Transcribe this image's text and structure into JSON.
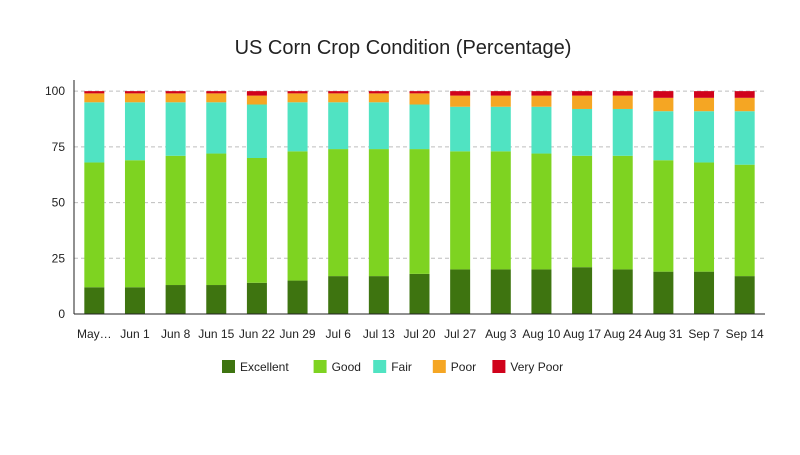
{
  "chart_data": {
    "type": "bar",
    "stacked": true,
    "title": "US Corn Crop Condition (Percentage)",
    "xlabel": "",
    "ylabel": "",
    "ylim": [
      0,
      100
    ],
    "yticks": [
      0,
      25,
      50,
      75,
      100
    ],
    "grid": {
      "horizontal": true,
      "style": "dashed"
    },
    "legend_position": "bottom",
    "categories": [
      "May…",
      "Jun 1",
      "Jun 8",
      "Jun 15",
      "Jun 22",
      "Jun 29",
      "Jul 6",
      "Jul 13",
      "Jul 20",
      "Jul 27",
      "Aug 3",
      "Aug 10",
      "Aug 17",
      "Aug 24",
      "Aug 31",
      "Sep 7",
      "Sep 14"
    ],
    "series": [
      {
        "name": "Excellent",
        "color": "#3e7410",
        "values": [
          12,
          12,
          13,
          13,
          14,
          15,
          17,
          17,
          18,
          20,
          20,
          20,
          21,
          20,
          19,
          19,
          17
        ]
      },
      {
        "name": "Good",
        "color": "#7ed321",
        "values": [
          56,
          57,
          58,
          59,
          56,
          58,
          57,
          57,
          56,
          53,
          53,
          52,
          50,
          51,
          50,
          49,
          50
        ]
      },
      {
        "name": "Fair",
        "color": "#50e3c2",
        "values": [
          27,
          26,
          24,
          23,
          24,
          22,
          21,
          21,
          20,
          20,
          20,
          21,
          21,
          21,
          22,
          23,
          24
        ]
      },
      {
        "name": "Poor",
        "color": "#f5a623",
        "values": [
          4,
          4,
          4,
          4,
          4,
          4,
          4,
          4,
          5,
          5,
          5,
          5,
          6,
          6,
          6,
          6,
          6
        ]
      },
      {
        "name": "Very Poor",
        "color": "#d0021b",
        "values": [
          1,
          1,
          1,
          1,
          2,
          1,
          1,
          1,
          1,
          2,
          2,
          2,
          2,
          2,
          3,
          3,
          3
        ]
      }
    ]
  }
}
